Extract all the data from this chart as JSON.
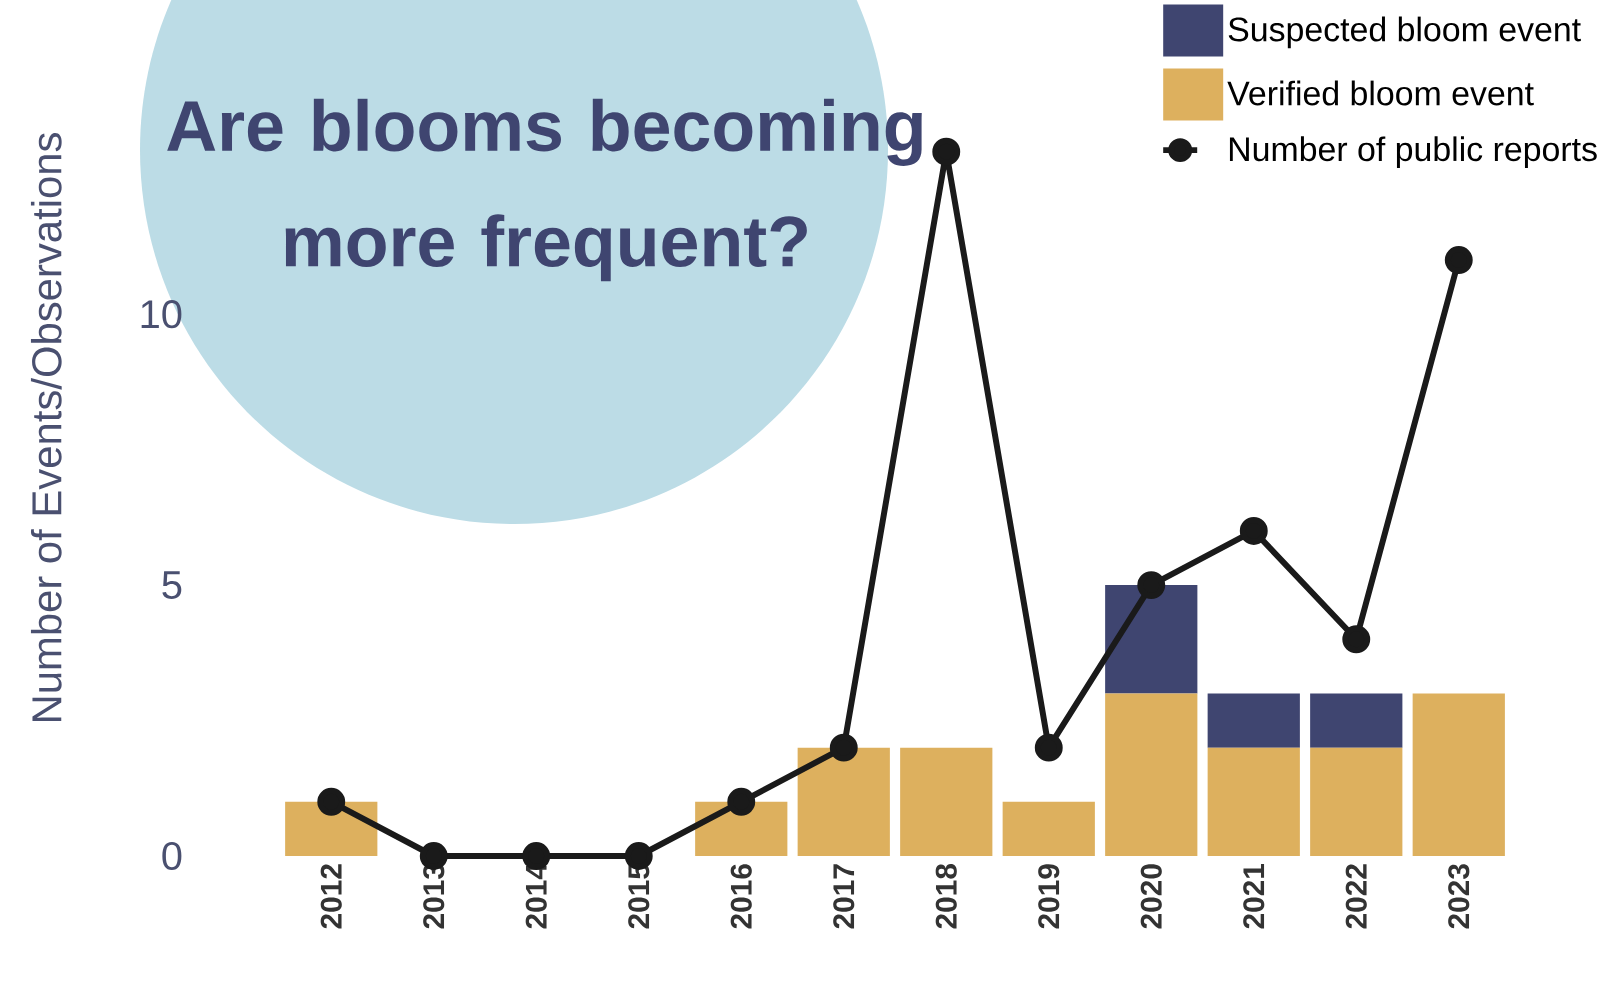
{
  "chart_data": {
    "type": "bar",
    "title": "Are blooms becoming more frequent?",
    "ylabel": "Number of Events/Observations",
    "categories": [
      "2012",
      "2013",
      "2014",
      "2015",
      "2016",
      "2017",
      "2018",
      "2019",
      "2020",
      "2021",
      "2022",
      "2023"
    ],
    "stacked": true,
    "ylim": [
      0,
      15.8
    ],
    "yticks": [
      0,
      5,
      10
    ],
    "legend": "top right",
    "series": [
      {
        "name": "Verified bloom event",
        "color": "#ddb05e",
        "values": [
          1,
          0,
          0,
          0,
          1,
          2,
          2,
          1,
          3,
          2,
          2,
          3
        ]
      },
      {
        "name": "Suspected bloom event",
        "color": "#3f4570",
        "values": [
          0,
          0,
          0,
          0,
          0,
          0,
          0,
          0,
          2,
          1,
          1,
          0
        ]
      },
      {
        "name": "Number of public reports",
        "type": "line",
        "color": "#1a1a1a",
        "marker": "circle",
        "values": [
          1,
          0,
          0,
          0,
          1,
          2,
          13,
          2,
          5,
          6,
          4,
          11
        ]
      }
    ]
  }
}
